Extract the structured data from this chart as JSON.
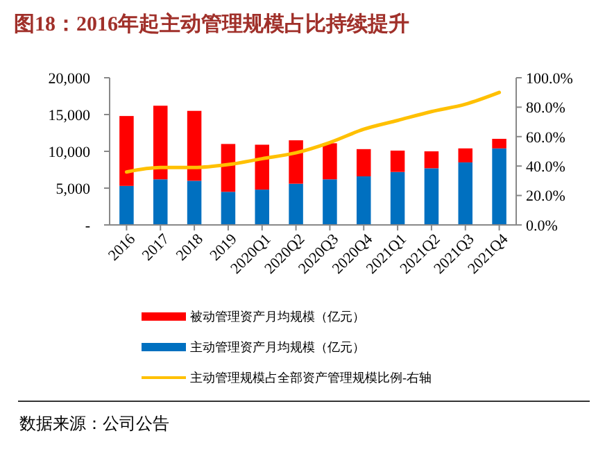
{
  "chart_data": {
    "type": "bar",
    "title": "图18：2016年起主动管理规模占比持续提升",
    "stacked": true,
    "categories": [
      "2016",
      "2017",
      "2018",
      "2019",
      "2020Q1",
      "2020Q2",
      "2020Q3",
      "2020Q4",
      "2021Q1",
      "2021Q2",
      "2021Q3",
      "2021Q4"
    ],
    "series": [
      {
        "name": "主动管理资产月均规模（亿元）",
        "color": "#0070c0",
        "values": [
          5300,
          6200,
          6000,
          4500,
          4800,
          5600,
          6200,
          6600,
          7200,
          7700,
          8500,
          10400
        ]
      },
      {
        "name": "被动管理资产月均规模（亿元）",
        "color": "#ff0000",
        "values": [
          9500,
          10000,
          9500,
          6500,
          6100,
          5900,
          4900,
          3700,
          2900,
          2300,
          1900,
          1300
        ]
      },
      {
        "name": "主动管理规模占全部资产管理规模比例-右轴",
        "type": "line",
        "axis": "y2",
        "color": "#ffc000",
        "values": [
          36,
          39,
          39,
          41,
          45,
          49,
          56,
          65,
          71,
          77,
          82,
          90
        ]
      }
    ],
    "ylim": [
      0,
      20000
    ],
    "yticks": [
      {
        "value": 0,
        "label": "-"
      },
      {
        "value": 5000,
        "label": "5,000"
      },
      {
        "value": 10000,
        "label": "10,000"
      },
      {
        "value": 15000,
        "label": "15,000"
      },
      {
        "value": 20000,
        "label": "20,000"
      }
    ],
    "y2lim": [
      0,
      100
    ],
    "y2ticks": [
      {
        "value": 0,
        "label": "0.0%"
      },
      {
        "value": 20,
        "label": "20.0%"
      },
      {
        "value": 40,
        "label": "40.0%"
      },
      {
        "value": 60,
        "label": "60.0%"
      },
      {
        "value": 80,
        "label": "80.0%"
      },
      {
        "value": 100,
        "label": "100.0%"
      }
    ],
    "legend": "bottom",
    "grid": false,
    "marker": "none",
    "annotations": [
      "数据来源：公司公告"
    ]
  }
}
